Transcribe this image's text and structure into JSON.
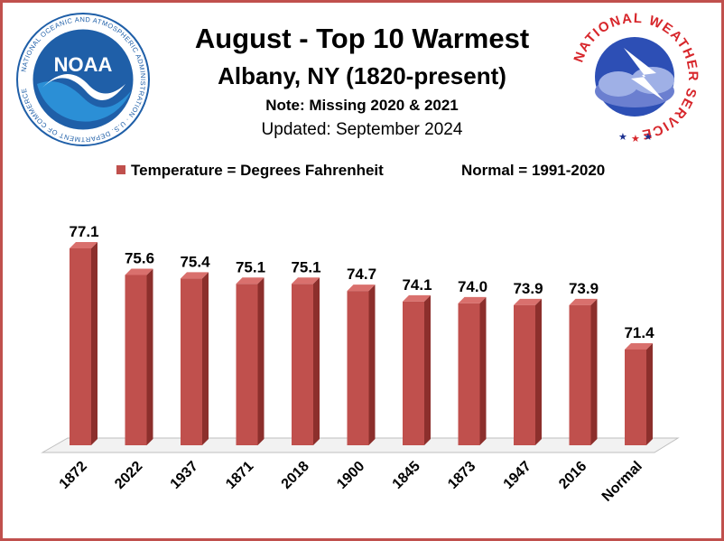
{
  "header": {
    "title": "August - Top 10 Warmest",
    "subtitle": "Albany, NY (1820-present)",
    "note": "Note: Missing 2020 & 2021",
    "updated": "Updated: September 2024"
  },
  "legend": {
    "series_label": "Temperature = Degrees Fahrenheit",
    "normal_label": "Normal = 1991-2020"
  },
  "logos": {
    "noaa_ring_text": "NATIONAL OCEANIC AND ATMOSPHERIC ADMINISTRATION · U.S. DEPARTMENT OF COMMERCE",
    "noaa_center_text": "NOAA",
    "nws_ring_text": "NATIONAL WEATHER SERVICE"
  },
  "colors": {
    "bar_front": "#c0504d",
    "bar_side": "#8c2f2c",
    "bar_top": "#d9706d",
    "border": "#c0504d",
    "noaa_blue": "#1f5fa8",
    "nws_red": "#d7262b",
    "nws_blue": "#1a2f8f"
  },
  "chart_data": {
    "type": "bar",
    "categories": [
      "1872",
      "2022",
      "1937",
      "1871",
      "2018",
      "1900",
      "1845",
      "1873",
      "1947",
      "2016",
      "Normal"
    ],
    "values": [
      77.1,
      75.6,
      75.4,
      75.1,
      75.1,
      74.7,
      74.1,
      74.0,
      73.9,
      73.9,
      71.4
    ],
    "value_labels": [
      "77.1",
      "75.6",
      "75.4",
      "75.1",
      "75.1",
      "74.7",
      "74.1",
      "74.0",
      "73.9",
      "73.9",
      "71.4"
    ],
    "ylim": [
      66,
      78
    ],
    "grid": false,
    "legend_position": "top",
    "title": "August - Top 10 Warmest",
    "xlabel": "",
    "ylabel": ""
  }
}
